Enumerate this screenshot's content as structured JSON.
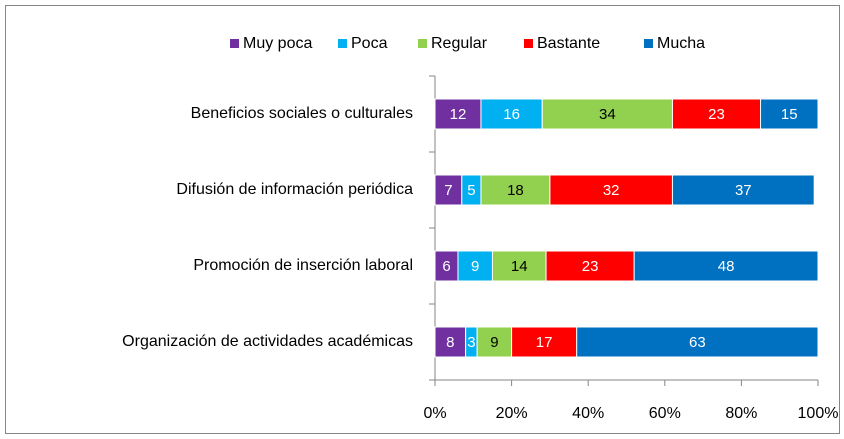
{
  "chart_data": {
    "type": "bar",
    "orientation": "horizontal",
    "stacked": true,
    "categories": [
      "Beneficios sociales  o culturales",
      "Difusión de información periódica",
      "Promoción de inserción laboral",
      "Organización de actividades académicas"
    ],
    "series": [
      {
        "name": "Muy poca",
        "color": "#7030a0",
        "label_color": "#ffffff",
        "values": [
          12,
          7,
          6,
          8
        ]
      },
      {
        "name": "Poca",
        "color": "#00b0f0",
        "label_color": "#ffffff",
        "values": [
          16,
          5,
          9,
          3
        ]
      },
      {
        "name": "Regular",
        "color": "#92d050",
        "label_color": "#000000",
        "values": [
          34,
          18,
          14,
          9
        ]
      },
      {
        "name": "Bastante",
        "color": "#ff0000",
        "label_color": "#ffffff",
        "values": [
          23,
          32,
          23,
          17
        ]
      },
      {
        "name": "Mucha",
        "color": "#0070c0",
        "label_color": "#ffffff",
        "values": [
          15,
          37,
          48,
          63
        ]
      }
    ],
    "xlim": [
      0,
      100
    ],
    "xticks": [
      {
        "value": 0,
        "label": "0%"
      },
      {
        "value": 20,
        "label": "20%"
      },
      {
        "value": 40,
        "label": "40%"
      },
      {
        "value": 60,
        "label": "60%"
      },
      {
        "value": 80,
        "label": "80%"
      },
      {
        "value": 100,
        "label": "100%"
      }
    ],
    "legend": "top"
  }
}
